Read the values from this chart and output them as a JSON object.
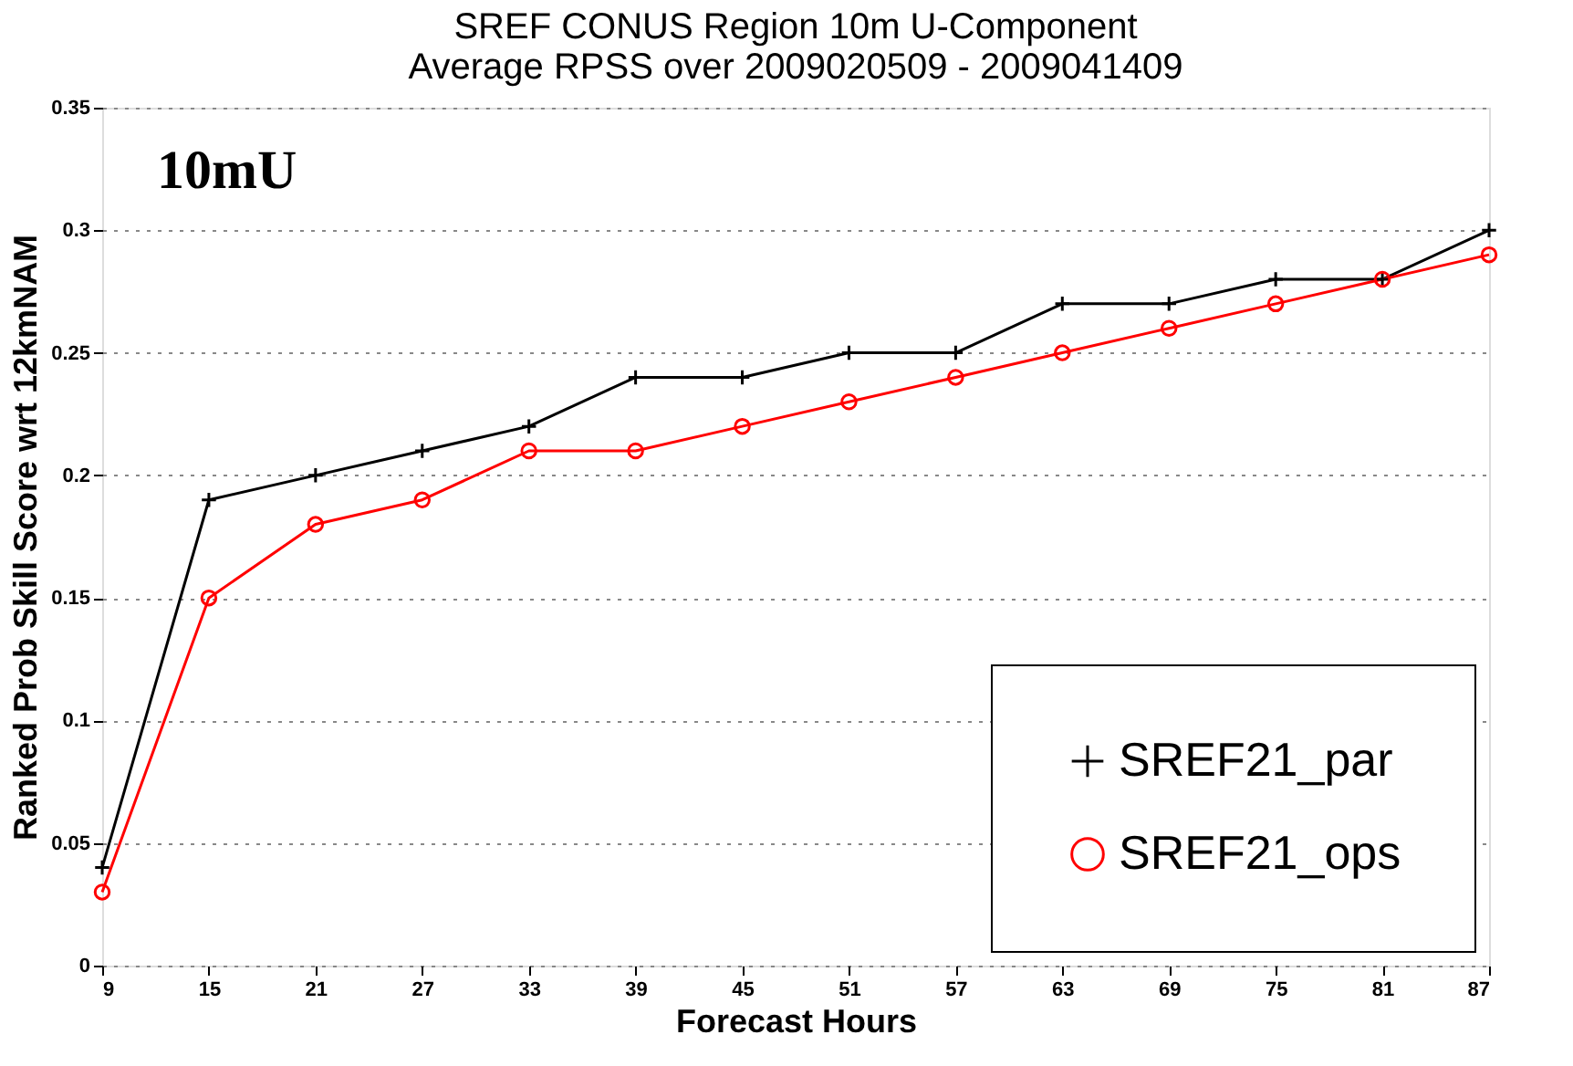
{
  "chart_data": {
    "type": "line",
    "title": [
      "SREF CONUS Region 10m U-Component",
      "Average RPSS over 2009020509 - 2009041409"
    ],
    "xlabel": "Forecast Hours",
    "ylabel": "Ranked Prob Skill Score wrt 12kmNAM",
    "x": [
      9,
      15,
      21,
      27,
      33,
      39,
      45,
      51,
      57,
      63,
      69,
      75,
      81,
      87
    ],
    "series": [
      {
        "name": "SREF21_par",
        "color": "#000000",
        "marker": "cross",
        "values": [
          0.04,
          0.19,
          0.2,
          0.21,
          0.22,
          0.24,
          0.24,
          0.25,
          0.25,
          0.27,
          0.27,
          0.28,
          0.28,
          0.3
        ]
      },
      {
        "name": "SREF21_ops",
        "color": "#ff0000",
        "marker": "circle",
        "values": [
          0.03,
          0.15,
          0.18,
          0.19,
          0.21,
          0.21,
          0.22,
          0.23,
          0.24,
          0.25,
          0.26,
          0.27,
          0.28,
          0.29
        ]
      }
    ],
    "xlim": [
      9,
      87
    ],
    "xticks": [
      9,
      15,
      21,
      27,
      33,
      39,
      45,
      51,
      57,
      63,
      69,
      75,
      81,
      87
    ],
    "ylim": [
      0,
      0.35
    ],
    "yticks": [
      0,
      0.05,
      0.1,
      0.15,
      0.2,
      0.25,
      0.3,
      0.35
    ],
    "grid": "y",
    "legend": "bottom right",
    "line_style": "solid",
    "annotations": [
      "10mU"
    ]
  }
}
